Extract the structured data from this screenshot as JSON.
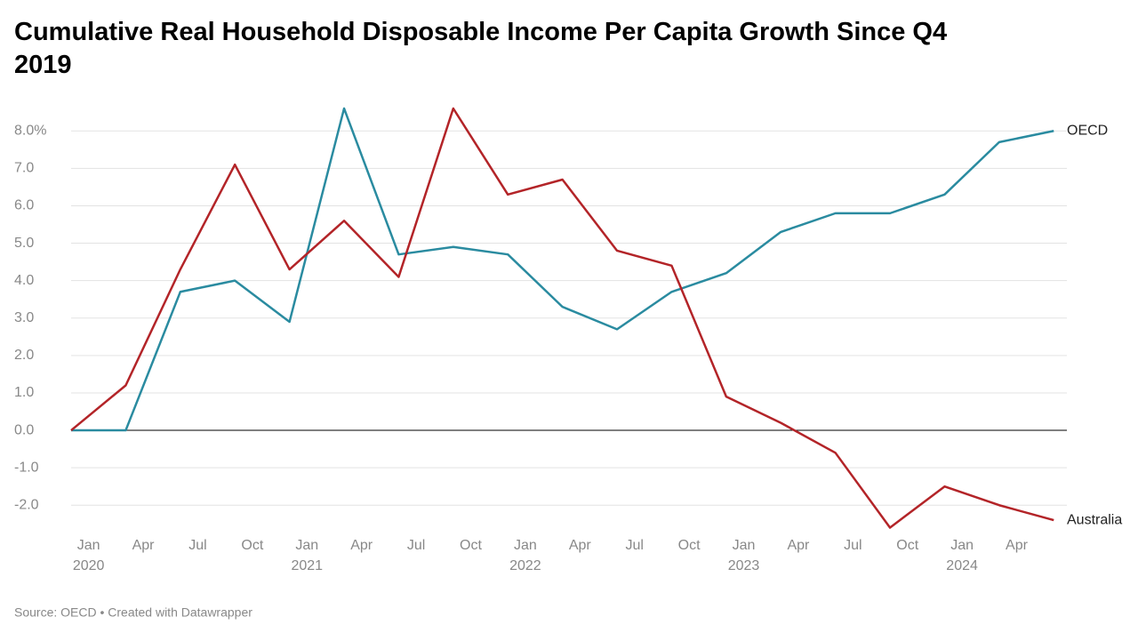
{
  "chart_data": {
    "type": "line",
    "title": "Cumulative Real Household Disposable Income Per Capita Growth Since Q4 2019",
    "source": "Source: OECD • Created with Datawrapper",
    "x": [
      2019.92,
      2020.17,
      2020.42,
      2020.67,
      2020.92,
      2021.17,
      2021.42,
      2021.67,
      2021.92,
      2022.17,
      2022.42,
      2022.67,
      2022.92,
      2023.17,
      2023.42,
      2023.67,
      2023.92,
      2024.17,
      2024.42
    ],
    "series": [
      {
        "name": "OECD",
        "color": "#2a8ba0",
        "values": [
          0,
          0,
          3.7,
          4.0,
          2.9,
          8.6,
          4.7,
          4.9,
          4.7,
          3.3,
          2.7,
          3.7,
          4.2,
          5.3,
          5.8,
          5.8,
          6.3,
          7.7,
          8.0
        ]
      },
      {
        "name": "Australia",
        "color": "#b32428",
        "values": [
          0,
          1.2,
          4.3,
          7.1,
          4.3,
          5.6,
          4.1,
          8.6,
          6.3,
          6.7,
          4.8,
          4.4,
          0.9,
          0.2,
          -0.6,
          -2.6,
          -1.5,
          -2.0,
          -2.4
        ]
      }
    ],
    "xlim": [
      2019.92,
      2024.48
    ],
    "xticks": [
      {
        "value": 2020.0,
        "label": "Jan 2020"
      },
      {
        "value": 2020.25,
        "label": "Apr"
      },
      {
        "value": 2020.5,
        "label": "Jul"
      },
      {
        "value": 2020.75,
        "label": "Oct"
      },
      {
        "value": 2021.0,
        "label": "Jan 2021"
      },
      {
        "value": 2021.25,
        "label": "Apr"
      },
      {
        "value": 2021.5,
        "label": "Jul"
      },
      {
        "value": 2021.75,
        "label": "Oct"
      },
      {
        "value": 2022.0,
        "label": "Jan 2022"
      },
      {
        "value": 2022.25,
        "label": "Apr"
      },
      {
        "value": 2022.5,
        "label": "Jul"
      },
      {
        "value": 2022.75,
        "label": "Oct"
      },
      {
        "value": 2023.0,
        "label": "Jan 2023"
      },
      {
        "value": 2023.25,
        "label": "Apr"
      },
      {
        "value": 2023.5,
        "label": "Jul"
      },
      {
        "value": 2023.75,
        "label": "Oct"
      },
      {
        "value": 2024.0,
        "label": "Jan 2024"
      },
      {
        "value": 2024.25,
        "label": "Apr"
      }
    ],
    "ylim": [
      -2.6,
      8.6
    ],
    "yticks": [
      {
        "value": -2,
        "label": "-2.0"
      },
      {
        "value": -1,
        "label": "-1.0"
      },
      {
        "value": 0,
        "label": "0.0"
      },
      {
        "value": 1,
        "label": "1.0"
      },
      {
        "value": 2,
        "label": "2.0"
      },
      {
        "value": 3,
        "label": "3.0"
      },
      {
        "value": 4,
        "label": "4.0"
      },
      {
        "value": 5,
        "label": "5.0"
      },
      {
        "value": 6,
        "label": "6.0"
      },
      {
        "value": 7,
        "label": "7.0"
      },
      {
        "value": 8,
        "label": "8.0%"
      }
    ],
    "grid": true
  }
}
